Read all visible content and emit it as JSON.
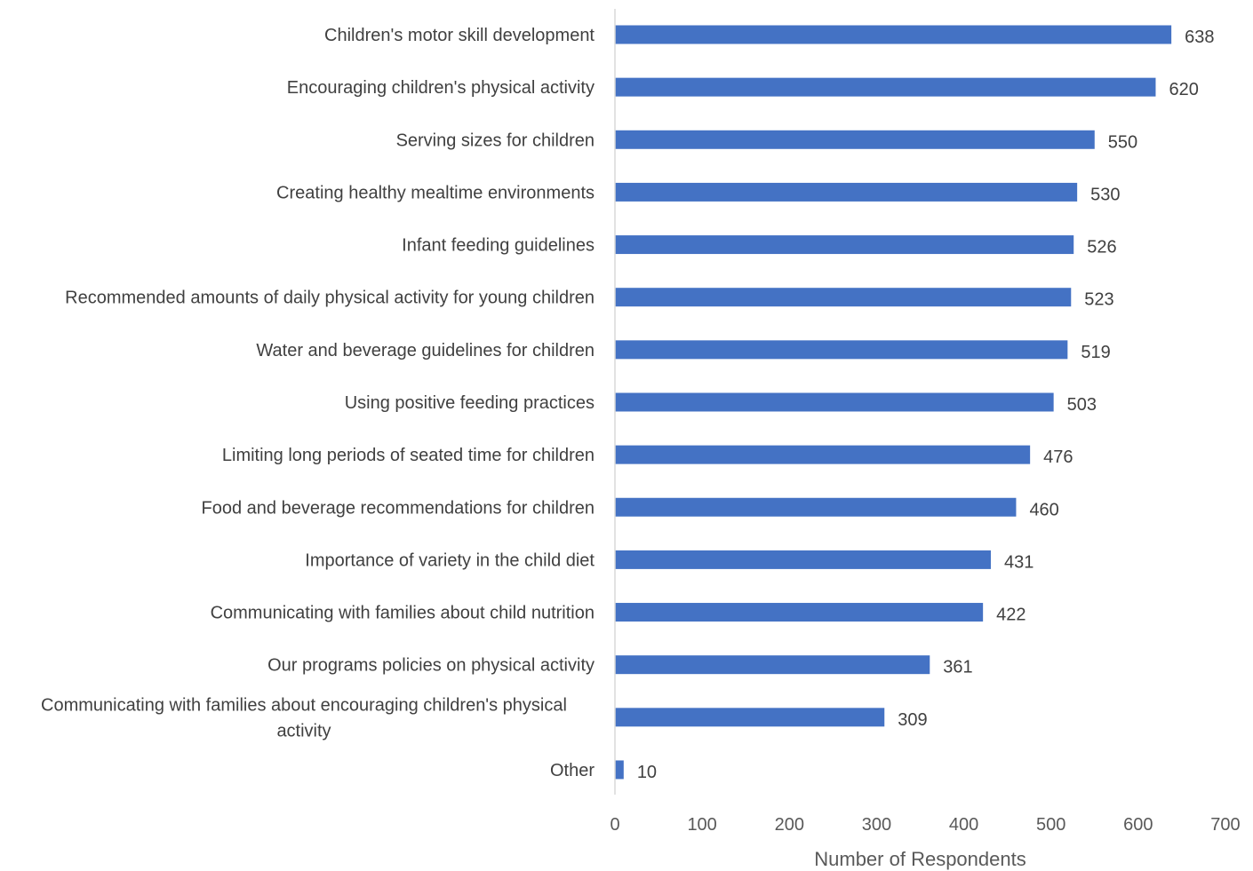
{
  "chart_data": {
    "type": "bar",
    "orientation": "horizontal",
    "title": "",
    "xlabel": "Number of Respondents",
    "ylabel": "",
    "xlim": [
      0,
      700
    ],
    "x_ticks": [
      0,
      100,
      200,
      300,
      400,
      500,
      600,
      700
    ],
    "grid": false,
    "bar_color": "#4472C4",
    "categories": [
      "Children's motor skill development",
      "Encouraging children's physical activity",
      "Serving sizes for children",
      "Creating healthy mealtime environments",
      "Infant feeding guidelines",
      "Recommended amounts of daily physical activity for young children",
      "Water and beverage guidelines for children",
      "Using positive feeding practices",
      "Limiting long periods of seated time for children",
      "Food and beverage recommendations for children",
      "Importance of variety in the child diet",
      "Communicating with families about child nutrition",
      "Our programs policies on physical activity",
      "Communicating with families about encouraging children's physical activity",
      "Other"
    ],
    "values": [
      638,
      620,
      550,
      530,
      526,
      523,
      519,
      503,
      476,
      460,
      431,
      422,
      361,
      309,
      10
    ]
  }
}
